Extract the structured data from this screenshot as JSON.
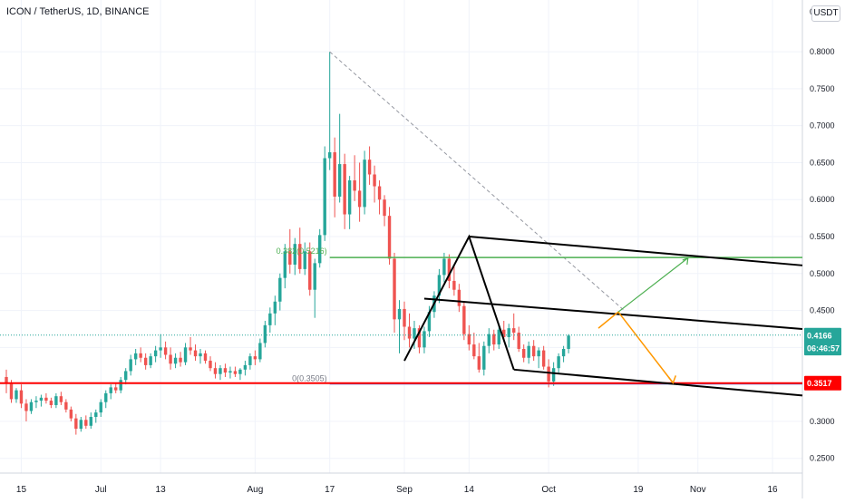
{
  "header": {
    "title": "ICON / TetherUS, 1D, BINANCE",
    "currency": "USDT"
  },
  "chart_data": {
    "type": "candlestick",
    "y_axis": {
      "ticks": [
        "0.2500",
        "0.3000",
        "0.3500",
        "0.4000",
        "0.4500",
        "0.5000",
        "0.5500",
        "0.6000",
        "0.6500",
        "0.7000",
        "0.7500",
        "0.8000"
      ],
      "range": [
        0.23,
        0.87
      ]
    },
    "x_axis": {
      "ticks": [
        {
          "label": "15",
          "i": 3
        },
        {
          "label": "Jul",
          "i": 19
        },
        {
          "label": "13",
          "i": 31
        },
        {
          "label": "Aug",
          "i": 50
        },
        {
          "label": "17",
          "i": 65
        },
        {
          "label": "Sep",
          "i": 80
        },
        {
          "label": "14",
          "i": 93
        },
        {
          "label": "Oct",
          "i": 109
        },
        {
          "label": "19",
          "i": 127
        },
        {
          "label": "Nov",
          "i": 139
        },
        {
          "label": "16",
          "i": 154
        }
      ],
      "visible_days": 161
    },
    "last_index": 119,
    "candles": [
      [
        0.36,
        0.37,
        0.338,
        0.352
      ],
      [
        0.352,
        0.356,
        0.325,
        0.33
      ],
      [
        0.33,
        0.345,
        0.325,
        0.342
      ],
      [
        0.342,
        0.35,
        0.318,
        0.324
      ],
      [
        0.324,
        0.33,
        0.3,
        0.314
      ],
      [
        0.314,
        0.33,
        0.31,
        0.326
      ],
      [
        0.326,
        0.334,
        0.318,
        0.328
      ],
      [
        0.328,
        0.336,
        0.32,
        0.332
      ],
      [
        0.332,
        0.338,
        0.324,
        0.328
      ],
      [
        0.328,
        0.332,
        0.318,
        0.322
      ],
      [
        0.322,
        0.338,
        0.318,
        0.334
      ],
      [
        0.334,
        0.34,
        0.322,
        0.326
      ],
      [
        0.326,
        0.33,
        0.312,
        0.316
      ],
      [
        0.316,
        0.32,
        0.3,
        0.304
      ],
      [
        0.304,
        0.31,
        0.282,
        0.29
      ],
      [
        0.29,
        0.306,
        0.286,
        0.302
      ],
      [
        0.302,
        0.308,
        0.29,
        0.294
      ],
      [
        0.294,
        0.312,
        0.29,
        0.306
      ],
      [
        0.306,
        0.316,
        0.298,
        0.312
      ],
      [
        0.312,
        0.33,
        0.306,
        0.326
      ],
      [
        0.326,
        0.342,
        0.318,
        0.338
      ],
      [
        0.338,
        0.35,
        0.33,
        0.346
      ],
      [
        0.346,
        0.352,
        0.338,
        0.342
      ],
      [
        0.342,
        0.36,
        0.338,
        0.356
      ],
      [
        0.356,
        0.372,
        0.35,
        0.368
      ],
      [
        0.368,
        0.39,
        0.362,
        0.384
      ],
      [
        0.384,
        0.398,
        0.376,
        0.392
      ],
      [
        0.392,
        0.4,
        0.38,
        0.386
      ],
      [
        0.386,
        0.392,
        0.37,
        0.376
      ],
      [
        0.376,
        0.392,
        0.372,
        0.388
      ],
      [
        0.388,
        0.402,
        0.38,
        0.396
      ],
      [
        0.396,
        0.418,
        0.386,
        0.4
      ],
      [
        0.4,
        0.408,
        0.384,
        0.39
      ],
      [
        0.39,
        0.4,
        0.37,
        0.378
      ],
      [
        0.378,
        0.392,
        0.372,
        0.386
      ],
      [
        0.386,
        0.394,
        0.374,
        0.38
      ],
      [
        0.38,
        0.406,
        0.376,
        0.4
      ],
      [
        0.4,
        0.414,
        0.39,
        0.396
      ],
      [
        0.396,
        0.404,
        0.382,
        0.388
      ],
      [
        0.388,
        0.398,
        0.378,
        0.392
      ],
      [
        0.392,
        0.396,
        0.378,
        0.382
      ],
      [
        0.382,
        0.388,
        0.368,
        0.372
      ],
      [
        0.372,
        0.38,
        0.358,
        0.364
      ],
      [
        0.364,
        0.376,
        0.356,
        0.372
      ],
      [
        0.372,
        0.378,
        0.36,
        0.366
      ],
      [
        0.366,
        0.374,
        0.358,
        0.368
      ],
      [
        0.368,
        0.374,
        0.36,
        0.364
      ],
      [
        0.364,
        0.372,
        0.356,
        0.37
      ],
      [
        0.37,
        0.382,
        0.362,
        0.376
      ],
      [
        0.376,
        0.392,
        0.37,
        0.388
      ],
      [
        0.388,
        0.396,
        0.376,
        0.384
      ],
      [
        0.384,
        0.412,
        0.38,
        0.406
      ],
      [
        0.406,
        0.436,
        0.4,
        0.43
      ],
      [
        0.43,
        0.454,
        0.42,
        0.446
      ],
      [
        0.446,
        0.47,
        0.43,
        0.462
      ],
      [
        0.462,
        0.5,
        0.45,
        0.494
      ],
      [
        0.494,
        0.54,
        0.48,
        0.53
      ],
      [
        0.53,
        0.56,
        0.5,
        0.512
      ],
      [
        0.512,
        0.548,
        0.498,
        0.54
      ],
      [
        0.54,
        0.562,
        0.5,
        0.506
      ],
      [
        0.506,
        0.542,
        0.498,
        0.53
      ],
      [
        0.53,
        0.542,
        0.47,
        0.478
      ],
      [
        0.478,
        0.52,
        0.44,
        0.514
      ],
      [
        0.514,
        0.56,
        0.508,
        0.552
      ],
      [
        0.552,
        0.672,
        0.544,
        0.656
      ],
      [
        0.656,
        0.8,
        0.64,
        0.664
      ],
      [
        0.664,
        0.684,
        0.576,
        0.604
      ],
      [
        0.604,
        0.716,
        0.596,
        0.648
      ],
      [
        0.648,
        0.662,
        0.56,
        0.58
      ],
      [
        0.58,
        0.632,
        0.56,
        0.626
      ],
      [
        0.626,
        0.66,
        0.598,
        0.612
      ],
      [
        0.612,
        0.65,
        0.57,
        0.59
      ],
      [
        0.59,
        0.666,
        0.58,
        0.654
      ],
      [
        0.654,
        0.672,
        0.62,
        0.634
      ],
      [
        0.634,
        0.646,
        0.596,
        0.618
      ],
      [
        0.618,
        0.626,
        0.58,
        0.6
      ],
      [
        0.6,
        0.606,
        0.564,
        0.578
      ],
      [
        0.578,
        0.59,
        0.512,
        0.52
      ],
      [
        0.52,
        0.528,
        0.42,
        0.438
      ],
      [
        0.438,
        0.464,
        0.392,
        0.452
      ],
      [
        0.452,
        0.462,
        0.41,
        0.428
      ],
      [
        0.428,
        0.446,
        0.4,
        0.412
      ],
      [
        0.412,
        0.436,
        0.398,
        0.426
      ],
      [
        0.426,
        0.43,
        0.392,
        0.4
      ],
      [
        0.4,
        0.428,
        0.392,
        0.422
      ],
      [
        0.422,
        0.456,
        0.414,
        0.448
      ],
      [
        0.448,
        0.476,
        0.44,
        0.47
      ],
      [
        0.47,
        0.506,
        0.46,
        0.498
      ],
      [
        0.498,
        0.528,
        0.488,
        0.52
      ],
      [
        0.52,
        0.526,
        0.48,
        0.49
      ],
      [
        0.49,
        0.51,
        0.47,
        0.478
      ],
      [
        0.478,
        0.486,
        0.448,
        0.456
      ],
      [
        0.456,
        0.462,
        0.41,
        0.418
      ],
      [
        0.418,
        0.43,
        0.396,
        0.404
      ],
      [
        0.404,
        0.42,
        0.384,
        0.388
      ],
      [
        0.388,
        0.406,
        0.366,
        0.37
      ],
      [
        0.37,
        0.408,
        0.362,
        0.402
      ],
      [
        0.402,
        0.426,
        0.392,
        0.418
      ],
      [
        0.418,
        0.424,
        0.396,
        0.404
      ],
      [
        0.404,
        0.43,
        0.398,
        0.424
      ],
      [
        0.424,
        0.436,
        0.408,
        0.414
      ],
      [
        0.414,
        0.432,
        0.4,
        0.426
      ],
      [
        0.426,
        0.446,
        0.41,
        0.42
      ],
      [
        0.42,
        0.428,
        0.394,
        0.398
      ],
      [
        0.398,
        0.404,
        0.38,
        0.386
      ],
      [
        0.386,
        0.408,
        0.378,
        0.402
      ],
      [
        0.402,
        0.41,
        0.382,
        0.388
      ],
      [
        0.388,
        0.4,
        0.372,
        0.396
      ],
      [
        0.396,
        0.402,
        0.37,
        0.374
      ],
      [
        0.374,
        0.384,
        0.346,
        0.354
      ],
      [
        0.354,
        0.38,
        0.348,
        0.372
      ],
      [
        0.372,
        0.392,
        0.366,
        0.388
      ],
      [
        0.388,
        0.402,
        0.38,
        0.398
      ],
      [
        0.398,
        0.418,
        0.392,
        0.416
      ]
    ],
    "colors": {
      "up": "#26a69a",
      "down": "#ef5350",
      "line_red": "#ff0000",
      "line_green": "#4caf50",
      "line_orange": "#ff9800",
      "line_black": "#000000",
      "dashed": "#9598a1"
    },
    "drawings": {
      "fib_label_top": "0.382(0.5216)",
      "fib_label_bottom": "0(0.3505)",
      "fib_top_value": 0.5216,
      "fib_bottom_value": 0.3505,
      "support_value": 0.3517
    },
    "price_labels": [
      {
        "text": "0.4166",
        "value": 0.4166,
        "bg": "#26a69a",
        "fg": "#ffffff"
      },
      {
        "text": "06:46:57",
        "value": 0.399,
        "bg": "#26a69a",
        "fg": "#ffffff"
      },
      {
        "text": "0.3517",
        "value": 0.3517,
        "bg": "#ff0000",
        "fg": "#ffffff"
      }
    ]
  }
}
